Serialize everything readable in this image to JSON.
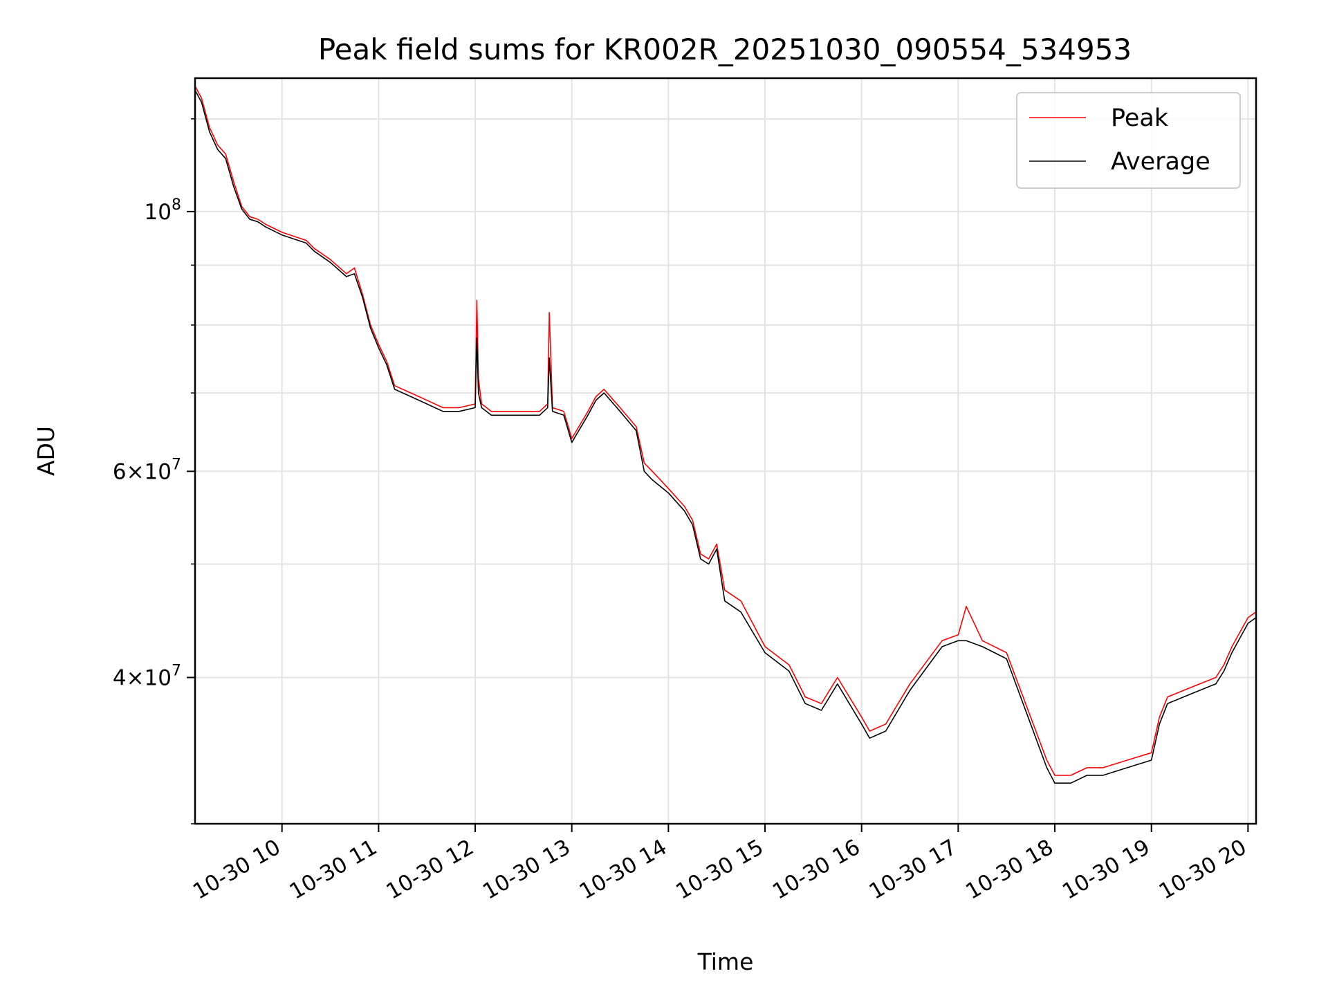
{
  "chart_data": {
    "type": "line",
    "title": "Peak field sums for KR002R_20251030_090554_534953",
    "xlabel": "Time",
    "ylabel": "ADU",
    "yscale": "log",
    "ylim": [
      30000000,
      130000000
    ],
    "xlim": [
      "2025-10-30 09:06",
      "2025-10-30 20:05"
    ],
    "grid": true,
    "legend": "top-right",
    "x_ticks": [
      "10-30 10",
      "10-30 11",
      "10-30 12",
      "10-30 13",
      "10-30 14",
      "10-30 15",
      "10-30 16",
      "10-30 17",
      "10-30 18",
      "10-30 19",
      "10-30 20"
    ],
    "y_ticks": [
      {
        "label": "10",
        "exp": "8",
        "value": 100000000
      },
      {
        "label": "6×10",
        "exp": "7",
        "value": 60000000
      },
      {
        "label": "4×10",
        "exp": "7",
        "value": 40000000
      }
    ],
    "series": [
      {
        "name": "Peak",
        "color": "#ff0000",
        "x": [
          "2025-10-30 09:06",
          "2025-10-30 09:10",
          "2025-10-30 09:15",
          "2025-10-30 09:20",
          "2025-10-30 09:25",
          "2025-10-30 09:30",
          "2025-10-30 09:35",
          "2025-10-30 09:40",
          "2025-10-30 09:45",
          "2025-10-30 09:50",
          "2025-10-30 10:00",
          "2025-10-30 10:05",
          "2025-10-30 10:15",
          "2025-10-30 10:20",
          "2025-10-30 10:30",
          "2025-10-30 10:40",
          "2025-10-30 10:45",
          "2025-10-30 10:50",
          "2025-10-30 10:55",
          "2025-10-30 11:00",
          "2025-10-30 11:05",
          "2025-10-30 11:10",
          "2025-10-30 11:15",
          "2025-10-30 11:20",
          "2025-10-30 11:30",
          "2025-10-30 11:40",
          "2025-10-30 11:50",
          "2025-10-30 12:00",
          "2025-10-30 12:01",
          "2025-10-30 12:02",
          "2025-10-30 12:04",
          "2025-10-30 12:10",
          "2025-10-30 12:20",
          "2025-10-30 12:30",
          "2025-10-30 12:40",
          "2025-10-30 12:45",
          "2025-10-30 12:46",
          "2025-10-30 12:48",
          "2025-10-30 12:55",
          "2025-10-30 13:00",
          "2025-10-30 13:10",
          "2025-10-30 13:15",
          "2025-10-30 13:20",
          "2025-10-30 13:30",
          "2025-10-30 13:40",
          "2025-10-30 13:45",
          "2025-10-30 13:50",
          "2025-10-30 14:00",
          "2025-10-30 14:10",
          "2025-10-30 14:15",
          "2025-10-30 14:20",
          "2025-10-30 14:25",
          "2025-10-30 14:30",
          "2025-10-30 14:35",
          "2025-10-30 14:45",
          "2025-10-30 15:00",
          "2025-10-30 15:15",
          "2025-10-30 15:25",
          "2025-10-30 15:35",
          "2025-10-30 15:45",
          "2025-10-30 16:00",
          "2025-10-30 16:05",
          "2025-10-30 16:15",
          "2025-10-30 16:30",
          "2025-10-30 16:50",
          "2025-10-30 17:00",
          "2025-10-30 17:05",
          "2025-10-30 17:15",
          "2025-10-30 17:30",
          "2025-10-30 17:45",
          "2025-10-30 17:55",
          "2025-10-30 18:00",
          "2025-10-30 18:10",
          "2025-10-30 18:20",
          "2025-10-30 18:30",
          "2025-10-30 18:45",
          "2025-10-30 19:00",
          "2025-10-30 19:05",
          "2025-10-30 19:10",
          "2025-10-30 19:20",
          "2025-10-30 19:30",
          "2025-10-30 19:40",
          "2025-10-30 19:45",
          "2025-10-30 19:50",
          "2025-10-30 20:00",
          "2025-10-30 20:05"
        ],
        "y": [
          128000000,
          125000000,
          118000000,
          114000000,
          112000000,
          106000000,
          101000000,
          99000000,
          98500000,
          97500000,
          96000000,
          95500000,
          94500000,
          93000000,
          91000000,
          88500000,
          89500000,
          85000000,
          80000000,
          77000000,
          74500000,
          71000000,
          70500000,
          70000000,
          69000000,
          68000000,
          68000000,
          68500000,
          84000000,
          72000000,
          68500000,
          67500000,
          67500000,
          67500000,
          67500000,
          68500000,
          82000000,
          68000000,
          67500000,
          64000000,
          67500000,
          69500000,
          70500000,
          68000000,
          65500000,
          61000000,
          60000000,
          58000000,
          56000000,
          54500000,
          51000000,
          50500000,
          52000000,
          47500000,
          46500000,
          42500000,
          41000000,
          38500000,
          38000000,
          40000000,
          37000000,
          36000000,
          36500000,
          39500000,
          43000000,
          43500000,
          46000000,
          43000000,
          42000000,
          37000000,
          34000000,
          33000000,
          33000000,
          33500000,
          33500000,
          34000000,
          34500000,
          37000000,
          38500000,
          39000000,
          39500000,
          40000000,
          41000000,
          42500000,
          45000000,
          45500000
        ]
      },
      {
        "name": "Average",
        "color": "#000000",
        "x": [
          "2025-10-30 09:06",
          "2025-10-30 09:10",
          "2025-10-30 09:15",
          "2025-10-30 09:20",
          "2025-10-30 09:25",
          "2025-10-30 09:30",
          "2025-10-30 09:35",
          "2025-10-30 09:40",
          "2025-10-30 09:45",
          "2025-10-30 09:50",
          "2025-10-30 10:00",
          "2025-10-30 10:05",
          "2025-10-30 10:15",
          "2025-10-30 10:20",
          "2025-10-30 10:30",
          "2025-10-30 10:40",
          "2025-10-30 10:45",
          "2025-10-30 10:50",
          "2025-10-30 10:55",
          "2025-10-30 11:00",
          "2025-10-30 11:05",
          "2025-10-30 11:10",
          "2025-10-30 11:15",
          "2025-10-30 11:20",
          "2025-10-30 11:30",
          "2025-10-30 11:40",
          "2025-10-30 11:50",
          "2025-10-30 12:00",
          "2025-10-30 12:01",
          "2025-10-30 12:02",
          "2025-10-30 12:04",
          "2025-10-30 12:10",
          "2025-10-30 12:20",
          "2025-10-30 12:30",
          "2025-10-30 12:40",
          "2025-10-30 12:45",
          "2025-10-30 12:46",
          "2025-10-30 12:48",
          "2025-10-30 12:55",
          "2025-10-30 13:00",
          "2025-10-30 13:10",
          "2025-10-30 13:15",
          "2025-10-30 13:20",
          "2025-10-30 13:30",
          "2025-10-30 13:40",
          "2025-10-30 13:45",
          "2025-10-30 13:50",
          "2025-10-30 14:00",
          "2025-10-30 14:10",
          "2025-10-30 14:15",
          "2025-10-30 14:20",
          "2025-10-30 14:25",
          "2025-10-30 14:30",
          "2025-10-30 14:35",
          "2025-10-30 14:45",
          "2025-10-30 15:00",
          "2025-10-30 15:15",
          "2025-10-30 15:25",
          "2025-10-30 15:35",
          "2025-10-30 15:45",
          "2025-10-30 16:00",
          "2025-10-30 16:05",
          "2025-10-30 16:15",
          "2025-10-30 16:30",
          "2025-10-30 16:50",
          "2025-10-30 17:00",
          "2025-10-30 17:05",
          "2025-10-30 17:15",
          "2025-10-30 17:30",
          "2025-10-30 17:45",
          "2025-10-30 17:55",
          "2025-10-30 18:00",
          "2025-10-30 18:10",
          "2025-10-30 18:20",
          "2025-10-30 18:30",
          "2025-10-30 18:45",
          "2025-10-30 19:00",
          "2025-10-30 19:05",
          "2025-10-30 19:10",
          "2025-10-30 19:20",
          "2025-10-30 19:30",
          "2025-10-30 19:40",
          "2025-10-30 19:45",
          "2025-10-30 19:50",
          "2025-10-30 20:00",
          "2025-10-30 20:05"
        ],
        "y": [
          127000000,
          124000000,
          117000000,
          113000000,
          111000000,
          105000000,
          100500000,
          98500000,
          98000000,
          97000000,
          95500000,
          95000000,
          94000000,
          92500000,
          90500000,
          88000000,
          88500000,
          84500000,
          79500000,
          76500000,
          74000000,
          70500000,
          70000000,
          69500000,
          68500000,
          67500000,
          67500000,
          68000000,
          78000000,
          70000000,
          68000000,
          67000000,
          67000000,
          67000000,
          67000000,
          68000000,
          75000000,
          67500000,
          67000000,
          63500000,
          67000000,
          69000000,
          70000000,
          67500000,
          65000000,
          60000000,
          59000000,
          57500000,
          55500000,
          54000000,
          50500000,
          50000000,
          51500000,
          46500000,
          45500000,
          42000000,
          40500000,
          38000000,
          37500000,
          39500000,
          36500000,
          35500000,
          36000000,
          39000000,
          42500000,
          43000000,
          43000000,
          42500000,
          41500000,
          36500000,
          33500000,
          32500000,
          32500000,
          33000000,
          33000000,
          33500000,
          34000000,
          36500000,
          38000000,
          38500000,
          39000000,
          39500000,
          40500000,
          42000000,
          44500000,
          45000000
        ]
      }
    ]
  }
}
